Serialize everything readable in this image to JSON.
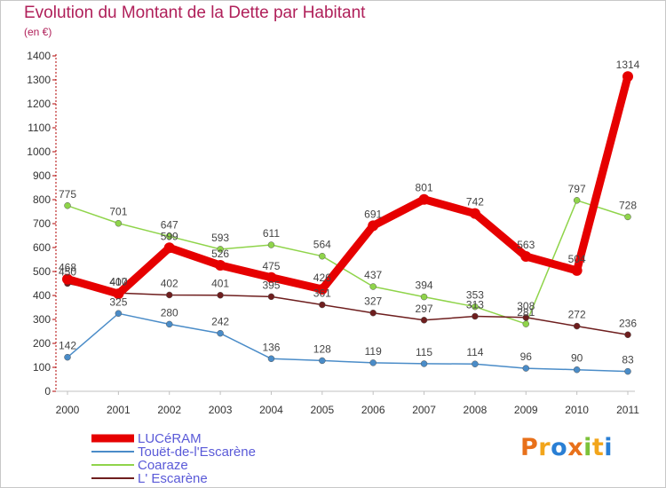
{
  "title": "Evolution du Montant de la Dette par Habitant",
  "subtitle": "(en €)",
  "logo_text": "Proxiti",
  "logo_colors": [
    "#e8701a",
    "#f2a51b",
    "#2a7fd4",
    "#e8701a",
    "#7cc23a",
    "#f2a51b",
    "#2a7fd4"
  ],
  "chart_data": {
    "type": "line",
    "x": [
      "2000",
      "2001",
      "2002",
      "2003",
      "2004",
      "2005",
      "2006",
      "2007",
      "2008",
      "2009",
      "2010",
      "2011"
    ],
    "ylim": [
      0,
      1400
    ],
    "yticks": [
      0,
      100,
      200,
      300,
      400,
      500,
      600,
      700,
      800,
      900,
      1000,
      1100,
      1200,
      1300,
      1400
    ],
    "grid": false,
    "legend_position": "bottom-left",
    "series": [
      {
        "name": "LUCéRAM",
        "color": "#e60000",
        "width": 9,
        "marker_r": 6,
        "values": [
          468,
          407,
          599,
          526,
          475,
          426,
          691,
          801,
          742,
          563,
          504,
          1314
        ],
        "labels": [
          "468",
          "407",
          "599",
          "526",
          "475",
          "426",
          "691",
          "801",
          "742",
          "563",
          "504",
          "1314"
        ]
      },
      {
        "name": "Touët-de-l'Escarène",
        "color": "#4a8cc8",
        "width": 1.5,
        "marker_r": 3.5,
        "values": [
          142,
          325,
          280,
          242,
          136,
          128,
          119,
          115,
          114,
          96,
          90,
          83
        ],
        "labels": [
          "142",
          "325",
          "280",
          "242",
          "136",
          "128",
          "119",
          "115",
          "114",
          "96",
          "90",
          "83"
        ]
      },
      {
        "name": "Coaraze",
        "color": "#8fd44a",
        "width": 1.5,
        "marker_r": 3.5,
        "values": [
          775,
          701,
          647,
          593,
          611,
          564,
          437,
          394,
          353,
          281,
          797,
          728
        ],
        "labels": [
          "775",
          "701",
          "647",
          "593",
          "611",
          "564",
          "437",
          "394",
          "353",
          "281",
          "797",
          "728"
        ]
      },
      {
        "name": "L' Escarène",
        "color": "#6e1e1e",
        "width": 1.5,
        "marker_r": 3.5,
        "values": [
          450,
          410,
          402,
          401,
          395,
          361,
          327,
          297,
          313,
          308,
          272,
          236
        ],
        "labels": [
          "450",
          "410",
          "402",
          "401",
          "395",
          "361",
          "327",
          "297",
          "313",
          "308",
          "272",
          "236"
        ]
      }
    ]
  }
}
